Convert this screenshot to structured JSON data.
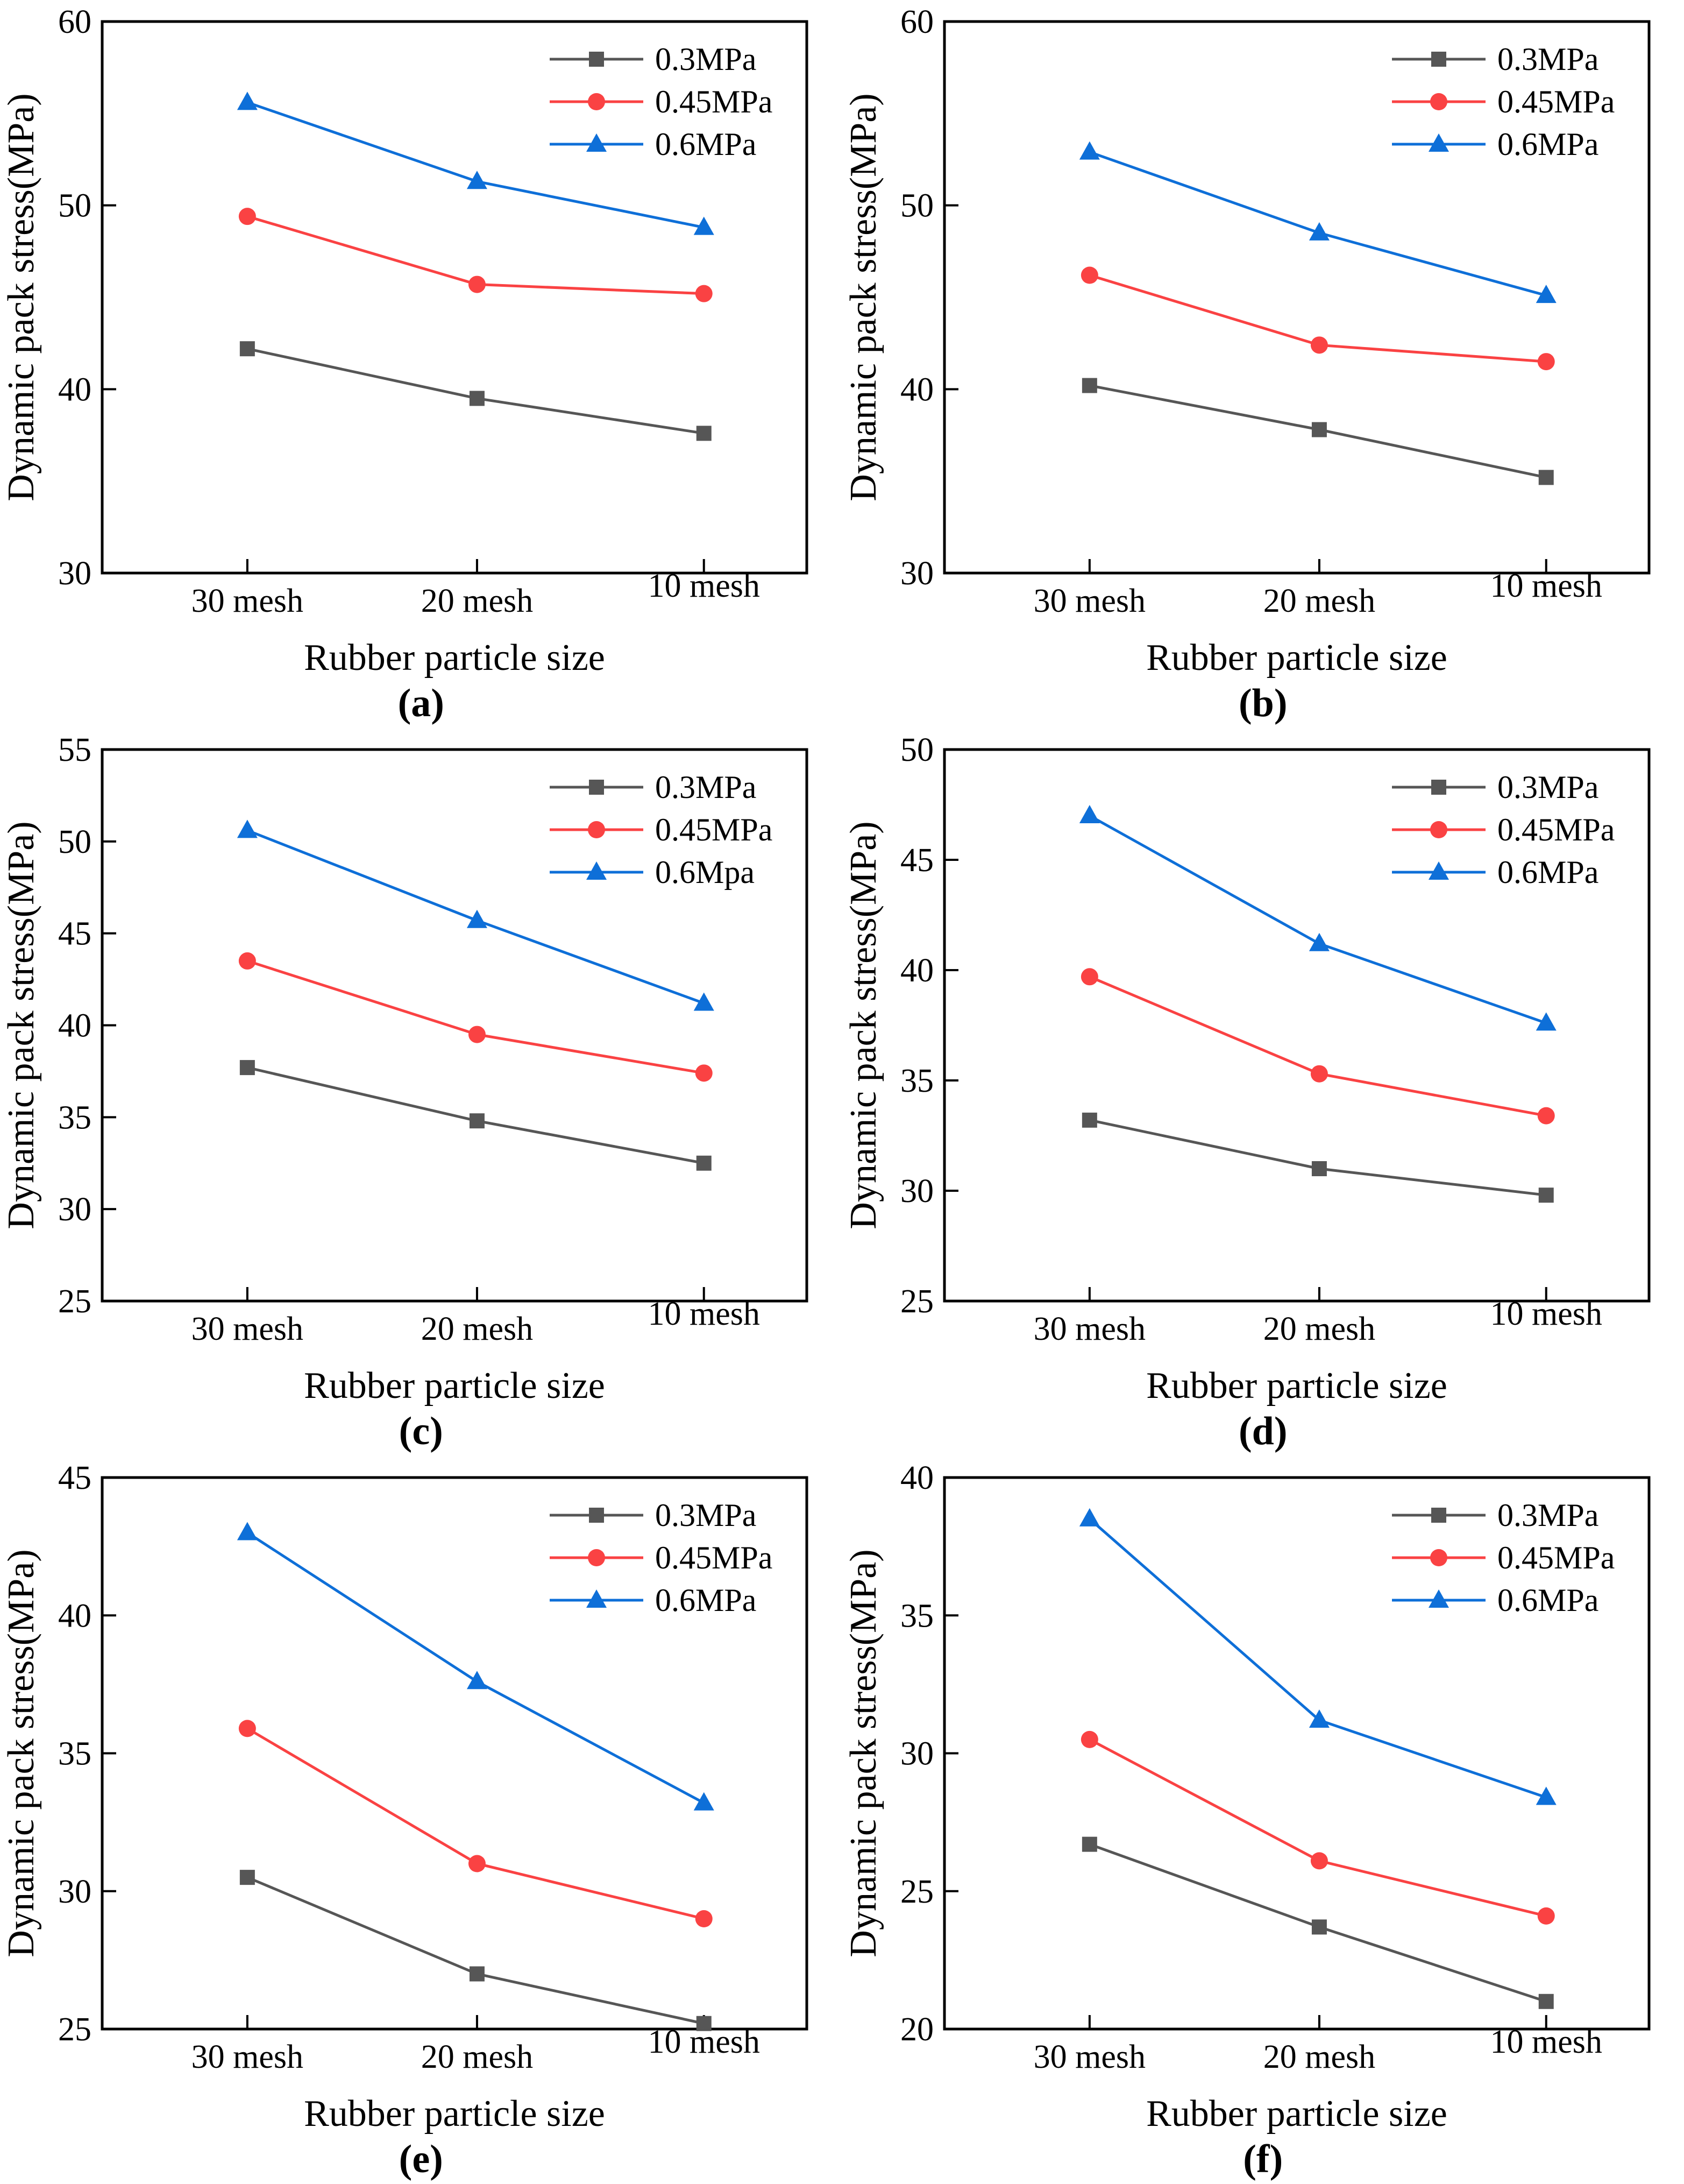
{
  "figure": {
    "background": "#ffffff",
    "axis_color": "#000000",
    "text_color": "#000000",
    "captions": [
      "(a)",
      "(b)",
      "(c)",
      "(d)",
      "(e)",
      "(f)"
    ]
  },
  "chart_data": [
    {
      "type": "line",
      "caption": "(a)",
      "xlabel": "Rubber particle size",
      "ylabel": "Dynamic pack stress(MPa)",
      "categories": [
        "30 mesh",
        "20 mesh",
        "10 mesh"
      ],
      "ylim": [
        30,
        60
      ],
      "yticks": [
        30,
        40,
        50,
        60
      ],
      "grid": false,
      "legend_position": "top-right",
      "series": [
        {
          "name": "0.3MPa",
          "marker": "square",
          "color": "#565656",
          "values": [
            42.2,
            39.5,
            37.6
          ]
        },
        {
          "name": "0.45MPa",
          "marker": "circle",
          "color": "#fa4243",
          "values": [
            49.4,
            45.7,
            45.2
          ]
        },
        {
          "name": "0.6MPa",
          "marker": "triangle",
          "color": "#0e6fd8",
          "values": [
            55.6,
            51.3,
            48.8
          ]
        }
      ]
    },
    {
      "type": "line",
      "caption": "(b)",
      "xlabel": "Rubber particle size",
      "ylabel": "Dynamic pack stress(MPa)",
      "categories": [
        "30 mesh",
        "20 mesh",
        "10 mesh"
      ],
      "ylim": [
        30,
        60
      ],
      "yticks": [
        30,
        40,
        50,
        60
      ],
      "grid": false,
      "legend_position": "top-right",
      "series": [
        {
          "name": "0.3MPa",
          "marker": "square",
          "color": "#565656",
          "values": [
            40.2,
            37.8,
            35.2
          ]
        },
        {
          "name": "0.45MPa",
          "marker": "circle",
          "color": "#fa4243",
          "values": [
            46.2,
            42.4,
            41.5
          ]
        },
        {
          "name": "0.6MPa",
          "marker": "triangle",
          "color": "#0e6fd8",
          "values": [
            52.9,
            48.5,
            45.1
          ]
        }
      ]
    },
    {
      "type": "line",
      "caption": "(c)",
      "xlabel": "Rubber particle size",
      "ylabel": "Dynamic pack stress(MPa)",
      "categories": [
        "30 mesh",
        "20 mesh",
        "10 mesh"
      ],
      "ylim": [
        25,
        55
      ],
      "yticks": [
        25,
        30,
        35,
        40,
        45,
        50,
        55
      ],
      "grid": false,
      "legend_position": "top-right",
      "series": [
        {
          "name": "0.3MPa",
          "marker": "square",
          "color": "#565656",
          "values": [
            37.7,
            34.8,
            32.5
          ]
        },
        {
          "name": "0.45MPa",
          "marker": "circle",
          "color": "#fa4243",
          "values": [
            43.5,
            39.5,
            37.4
          ]
        },
        {
          "name": "0.6Mpa",
          "marker": "triangle",
          "color": "#0e6fd8",
          "values": [
            50.6,
            45.7,
            41.2
          ]
        }
      ]
    },
    {
      "type": "line",
      "caption": "(d)",
      "xlabel": "Rubber particle size",
      "ylabel": "Dynamic pack stress(MPa)",
      "categories": [
        "30 mesh",
        "20 mesh",
        "10 mesh"
      ],
      "ylim": [
        25,
        50
      ],
      "yticks": [
        25,
        30,
        35,
        40,
        45,
        50
      ],
      "grid": false,
      "legend_position": "top-right",
      "series": [
        {
          "name": "0.3MPa",
          "marker": "square",
          "color": "#565656",
          "values": [
            33.2,
            31.0,
            29.8
          ]
        },
        {
          "name": "0.45MPa",
          "marker": "circle",
          "color": "#fa4243",
          "values": [
            39.7,
            35.3,
            33.4
          ]
        },
        {
          "name": "0.6MPa",
          "marker": "triangle",
          "color": "#0e6fd8",
          "values": [
            47.0,
            41.2,
            37.6
          ]
        }
      ]
    },
    {
      "type": "line",
      "caption": "(e)",
      "xlabel": "Rubber particle size",
      "ylabel": "Dynamic pack stress(MPa)",
      "categories": [
        "30 mesh",
        "20 mesh",
        "10 mesh"
      ],
      "ylim": [
        25,
        45
      ],
      "yticks": [
        25,
        30,
        35,
        40,
        45
      ],
      "grid": false,
      "legend_position": "top-right",
      "series": [
        {
          "name": "0.3MPa",
          "marker": "square",
          "color": "#565656",
          "values": [
            30.5,
            27.0,
            25.2
          ]
        },
        {
          "name": "0.45MPa",
          "marker": "circle",
          "color": "#fa4243",
          "values": [
            35.9,
            31.0,
            29.0
          ]
        },
        {
          "name": "0.6MPa",
          "marker": "triangle",
          "color": "#0e6fd8",
          "values": [
            43.0,
            37.6,
            33.2
          ]
        }
      ]
    },
    {
      "type": "line",
      "caption": "(f)",
      "xlabel": "Rubber particle size",
      "ylabel": "Dynamic pack stress(MPa)",
      "categories": [
        "30 mesh",
        "20 mesh",
        "10 mesh"
      ],
      "ylim": [
        20,
        40
      ],
      "yticks": [
        20,
        25,
        30,
        35,
        40
      ],
      "grid": false,
      "legend_position": "top-right",
      "series": [
        {
          "name": "0.3MPa",
          "marker": "square",
          "color": "#565656",
          "values": [
            26.7,
            23.7,
            21.0
          ]
        },
        {
          "name": "0.45MPa",
          "marker": "circle",
          "color": "#fa4243",
          "values": [
            30.5,
            26.1,
            24.1
          ]
        },
        {
          "name": "0.6MPa",
          "marker": "triangle",
          "color": "#0e6fd8",
          "values": [
            38.5,
            31.2,
            28.4
          ]
        }
      ]
    }
  ]
}
